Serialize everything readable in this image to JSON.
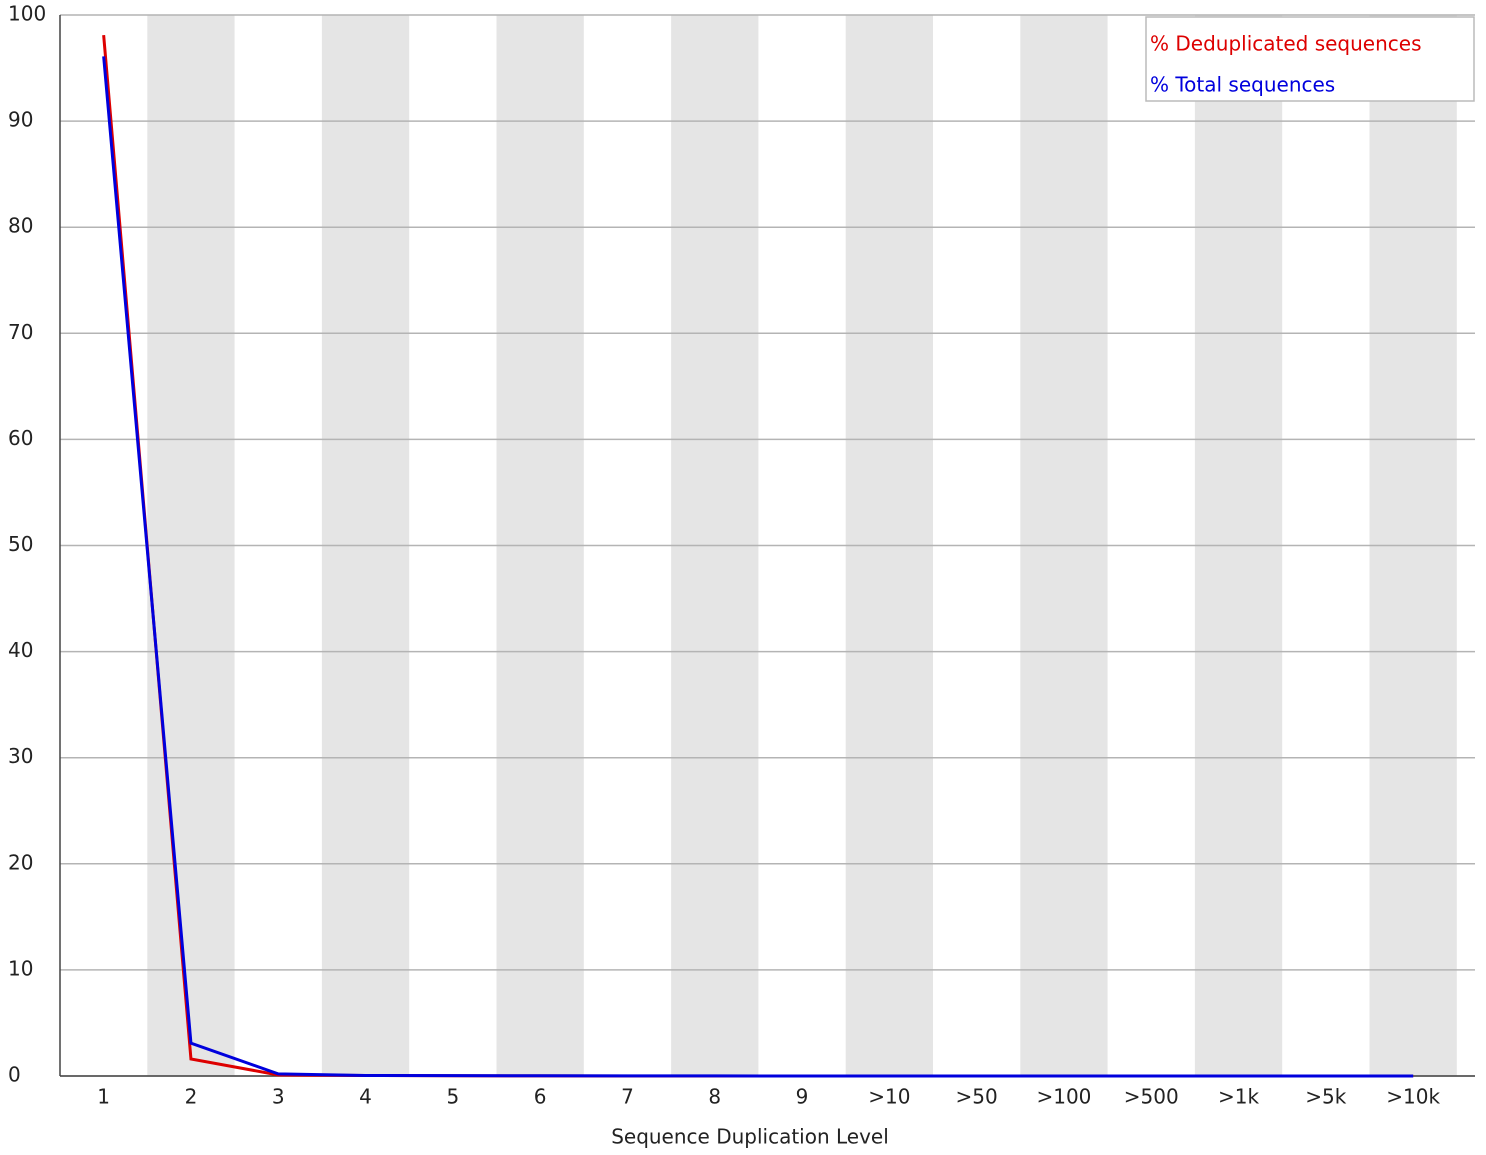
{
  "chart_data": {
    "type": "line",
    "xlabel": "Sequence Duplication Level",
    "categories": [
      "1",
      "2",
      "3",
      "4",
      "5",
      "6",
      "7",
      "8",
      "9",
      ">10",
      ">50",
      ">100",
      ">500",
      ">1k",
      ">5k",
      ">10k"
    ],
    "series": [
      {
        "name": "% Deduplicated sequences",
        "color": "#dd0000",
        "values": [
          98.1,
          1.6,
          0.1,
          0.05,
          0.02,
          0.01,
          0,
          0,
          0,
          0,
          0,
          0,
          0,
          0,
          0,
          0
        ]
      },
      {
        "name": "% Total sequences",
        "color": "#0000dd",
        "values": [
          96.1,
          3.1,
          0.2,
          0.05,
          0.03,
          0.02,
          0.01,
          0.01,
          0,
          0,
          0,
          0,
          0,
          0,
          0,
          0
        ]
      }
    ],
    "ylim": [
      0,
      100
    ],
    "yticks": [
      0,
      10,
      20,
      30,
      40,
      50,
      60,
      70,
      80,
      90,
      100
    ],
    "grid": true,
    "legend": "top-right"
  }
}
